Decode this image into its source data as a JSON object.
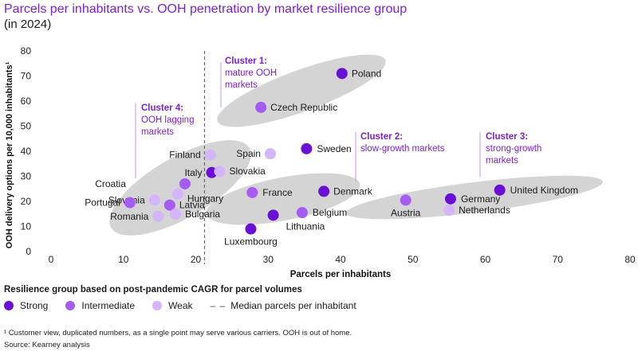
{
  "header": {
    "title": "Parcels per inhabitants vs. OOH penetration by market resilience group",
    "subtitle": "(in 2024)"
  },
  "colors": {
    "strong": "#6a0fd6",
    "intermediate": "#a55cf2",
    "weak": "#d4b4fa",
    "cluster_fill": "#cfcfcf",
    "cluster_text": "#7b1fd6"
  },
  "chart_data": {
    "type": "scatter",
    "xlabel": "Parcels per inhabitants",
    "ylabel": "OOH delivery options per 10,000 inhabitants¹",
    "xlim": [
      0,
      80
    ],
    "ylim": [
      0,
      80
    ],
    "xticks": [
      0,
      10,
      20,
      30,
      40,
      50,
      60,
      70,
      80
    ],
    "yticks": [
      0,
      10,
      20,
      30,
      40,
      50,
      60,
      70,
      80
    ],
    "median_line_x": 21.2,
    "points": [
      {
        "label": "Poland",
        "x": 40.2,
        "y": 71,
        "group": "strong"
      },
      {
        "label": "Czech Republic",
        "x": 29,
        "y": 57.5,
        "group": "intermediate"
      },
      {
        "label": "Sweden",
        "x": 35.3,
        "y": 41,
        "group": "strong"
      },
      {
        "label": "Spain",
        "x": 30.3,
        "y": 39,
        "group": "weak"
      },
      {
        "label": "Finland",
        "x": 22,
        "y": 38.5,
        "group": "weak"
      },
      {
        "label": "Italy",
        "x": 22.2,
        "y": 31.5,
        "group": "strong"
      },
      {
        "label": "Slovakia",
        "x": 23.3,
        "y": 32,
        "group": "weak"
      },
      {
        "label": "Croatia",
        "x": 18.5,
        "y": 27,
        "group": "intermediate"
      },
      {
        "label": "Slovenia",
        "x": 14.3,
        "y": 20.5,
        "group": "weak"
      },
      {
        "label": "Hungary",
        "x": 17.5,
        "y": 23,
        "group": "weak"
      },
      {
        "label": "Portugal",
        "x": 10.9,
        "y": 19.5,
        "group": "intermediate"
      },
      {
        "label": "Latvia",
        "x": 16.4,
        "y": 18.5,
        "group": "intermediate"
      },
      {
        "label": "Romania",
        "x": 14.8,
        "y": 14,
        "group": "weak"
      },
      {
        "label": "Bulgaria",
        "x": 17.2,
        "y": 15,
        "group": "weak"
      },
      {
        "label": "France",
        "x": 27.8,
        "y": 23.5,
        "group": "intermediate"
      },
      {
        "label": "Denmark",
        "x": 37.7,
        "y": 24,
        "group": "strong"
      },
      {
        "label": "Belgium",
        "x": 34.7,
        "y": 15.5,
        "group": "intermediate"
      },
      {
        "label": "Lithuania",
        "x": 30.7,
        "y": 14.5,
        "group": "strong"
      },
      {
        "label": "Luxembourg",
        "x": 27.6,
        "y": 9,
        "group": "strong"
      },
      {
        "label": "Austria",
        "x": 49,
        "y": 20.5,
        "group": "intermediate"
      },
      {
        "label": "Germany",
        "x": 55.2,
        "y": 21,
        "group": "strong"
      },
      {
        "label": "Netherlands",
        "x": 55,
        "y": 16.5,
        "group": "weak"
      },
      {
        "label": "United Kingdom",
        "x": 62,
        "y": 24.5,
        "group": "strong"
      }
    ],
    "clusters": [
      {
        "title": "Cluster 1:",
        "lines": [
          "mature OOH",
          "markets"
        ]
      },
      {
        "title": "Cluster 2:",
        "lines": [
          "slow-growth markets"
        ]
      },
      {
        "title": "Cluster 3:",
        "lines": [
          "strong-growth",
          "markets"
        ]
      },
      {
        "title": "Cluster 4:",
        "lines": [
          "OOH lagging",
          "markets"
        ]
      }
    ]
  },
  "legend": {
    "title": "Resilience group based on post-pandemic CAGR for parcel volumes",
    "strong": "Strong",
    "intermediate": "Intermediate",
    "weak": "Weak",
    "median": "Median parcels per inhabitant",
    "median_symbol": "– –"
  },
  "footnote": "¹ Customer view, duplicated numbers, as a single point may serve various carriers. OOH is out of home.",
  "source": "Source: Kearney analysis"
}
